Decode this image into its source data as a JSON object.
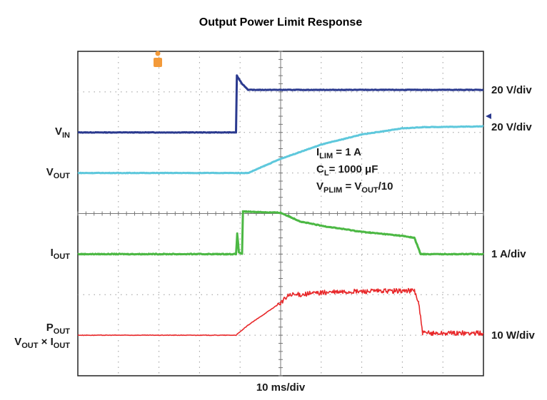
{
  "chart_data": {
    "type": "line",
    "title": "Output Power Limit Response",
    "xlabel": "10 ms/div",
    "x_divisions": 10,
    "y_divisions": 8,
    "grid": true,
    "series": [
      {
        "name": "VIN",
        "label_main": "V",
        "label_sub": "IN",
        "scale": "20 V/div",
        "color": "#2b3a8f",
        "points": [
          [
            0,
            6
          ],
          [
            3.9,
            6
          ],
          [
            3.92,
            7.4
          ],
          [
            4.05,
            7.2
          ],
          [
            4.2,
            7.05
          ],
          [
            10,
            7.05
          ]
        ]
      },
      {
        "name": "VOUT",
        "label_main": "V",
        "label_sub": "OUT",
        "scale": "20 V/div",
        "color": "#5ec8dc",
        "points": [
          [
            0,
            5
          ],
          [
            4.2,
            5
          ],
          [
            5,
            5.35
          ],
          [
            6,
            5.7
          ],
          [
            7,
            5.95
          ],
          [
            8,
            6.1
          ],
          [
            8.5,
            6.13
          ],
          [
            10,
            6.15
          ]
        ]
      },
      {
        "name": "IOUT",
        "label_main": "I",
        "label_sub": "OUT",
        "scale": "1 A/div",
        "color": "#4cb844",
        "points": [
          [
            0,
            3
          ],
          [
            3.9,
            3
          ],
          [
            3.93,
            3.5
          ],
          [
            3.97,
            3.05
          ],
          [
            4.05,
            3
          ],
          [
            4.07,
            4.05
          ],
          [
            5,
            4.02
          ],
          [
            5.5,
            3.8
          ],
          [
            6,
            3.7
          ],
          [
            7,
            3.55
          ],
          [
            8,
            3.45
          ],
          [
            8.3,
            3.4
          ],
          [
            8.45,
            3
          ],
          [
            10,
            3
          ]
        ]
      },
      {
        "name": "POUT",
        "label_main": "P",
        "label_sub": "OUT",
        "scale": "10 W/div",
        "color": "#e8282a",
        "points": [
          [
            0,
            1
          ],
          [
            3.9,
            1
          ],
          [
            4.2,
            1.25
          ],
          [
            5,
            1.8
          ],
          [
            5.2,
            1.98
          ],
          [
            6,
            2.05
          ],
          [
            7,
            2.08
          ],
          [
            8.3,
            2.1
          ],
          [
            8.4,
            1.8
          ],
          [
            8.5,
            1.05
          ],
          [
            10,
            1.05
          ]
        ]
      }
    ],
    "annotations": [
      {
        "main": "I",
        "sub": "LIM",
        "rest": " = 1 A"
      },
      {
        "main": "C",
        "sub": "L",
        "rest": "= 1000 μF"
      },
      {
        "main": "V",
        "sub": "PLIM",
        "rest": " = V",
        "sub2": "OUT",
        "rest2": "/10"
      }
    ],
    "pout_formula": {
      "a": "V",
      "a_sub": "OUT",
      "op": " × ",
      "b": "I",
      "b_sub": "OUT"
    }
  }
}
